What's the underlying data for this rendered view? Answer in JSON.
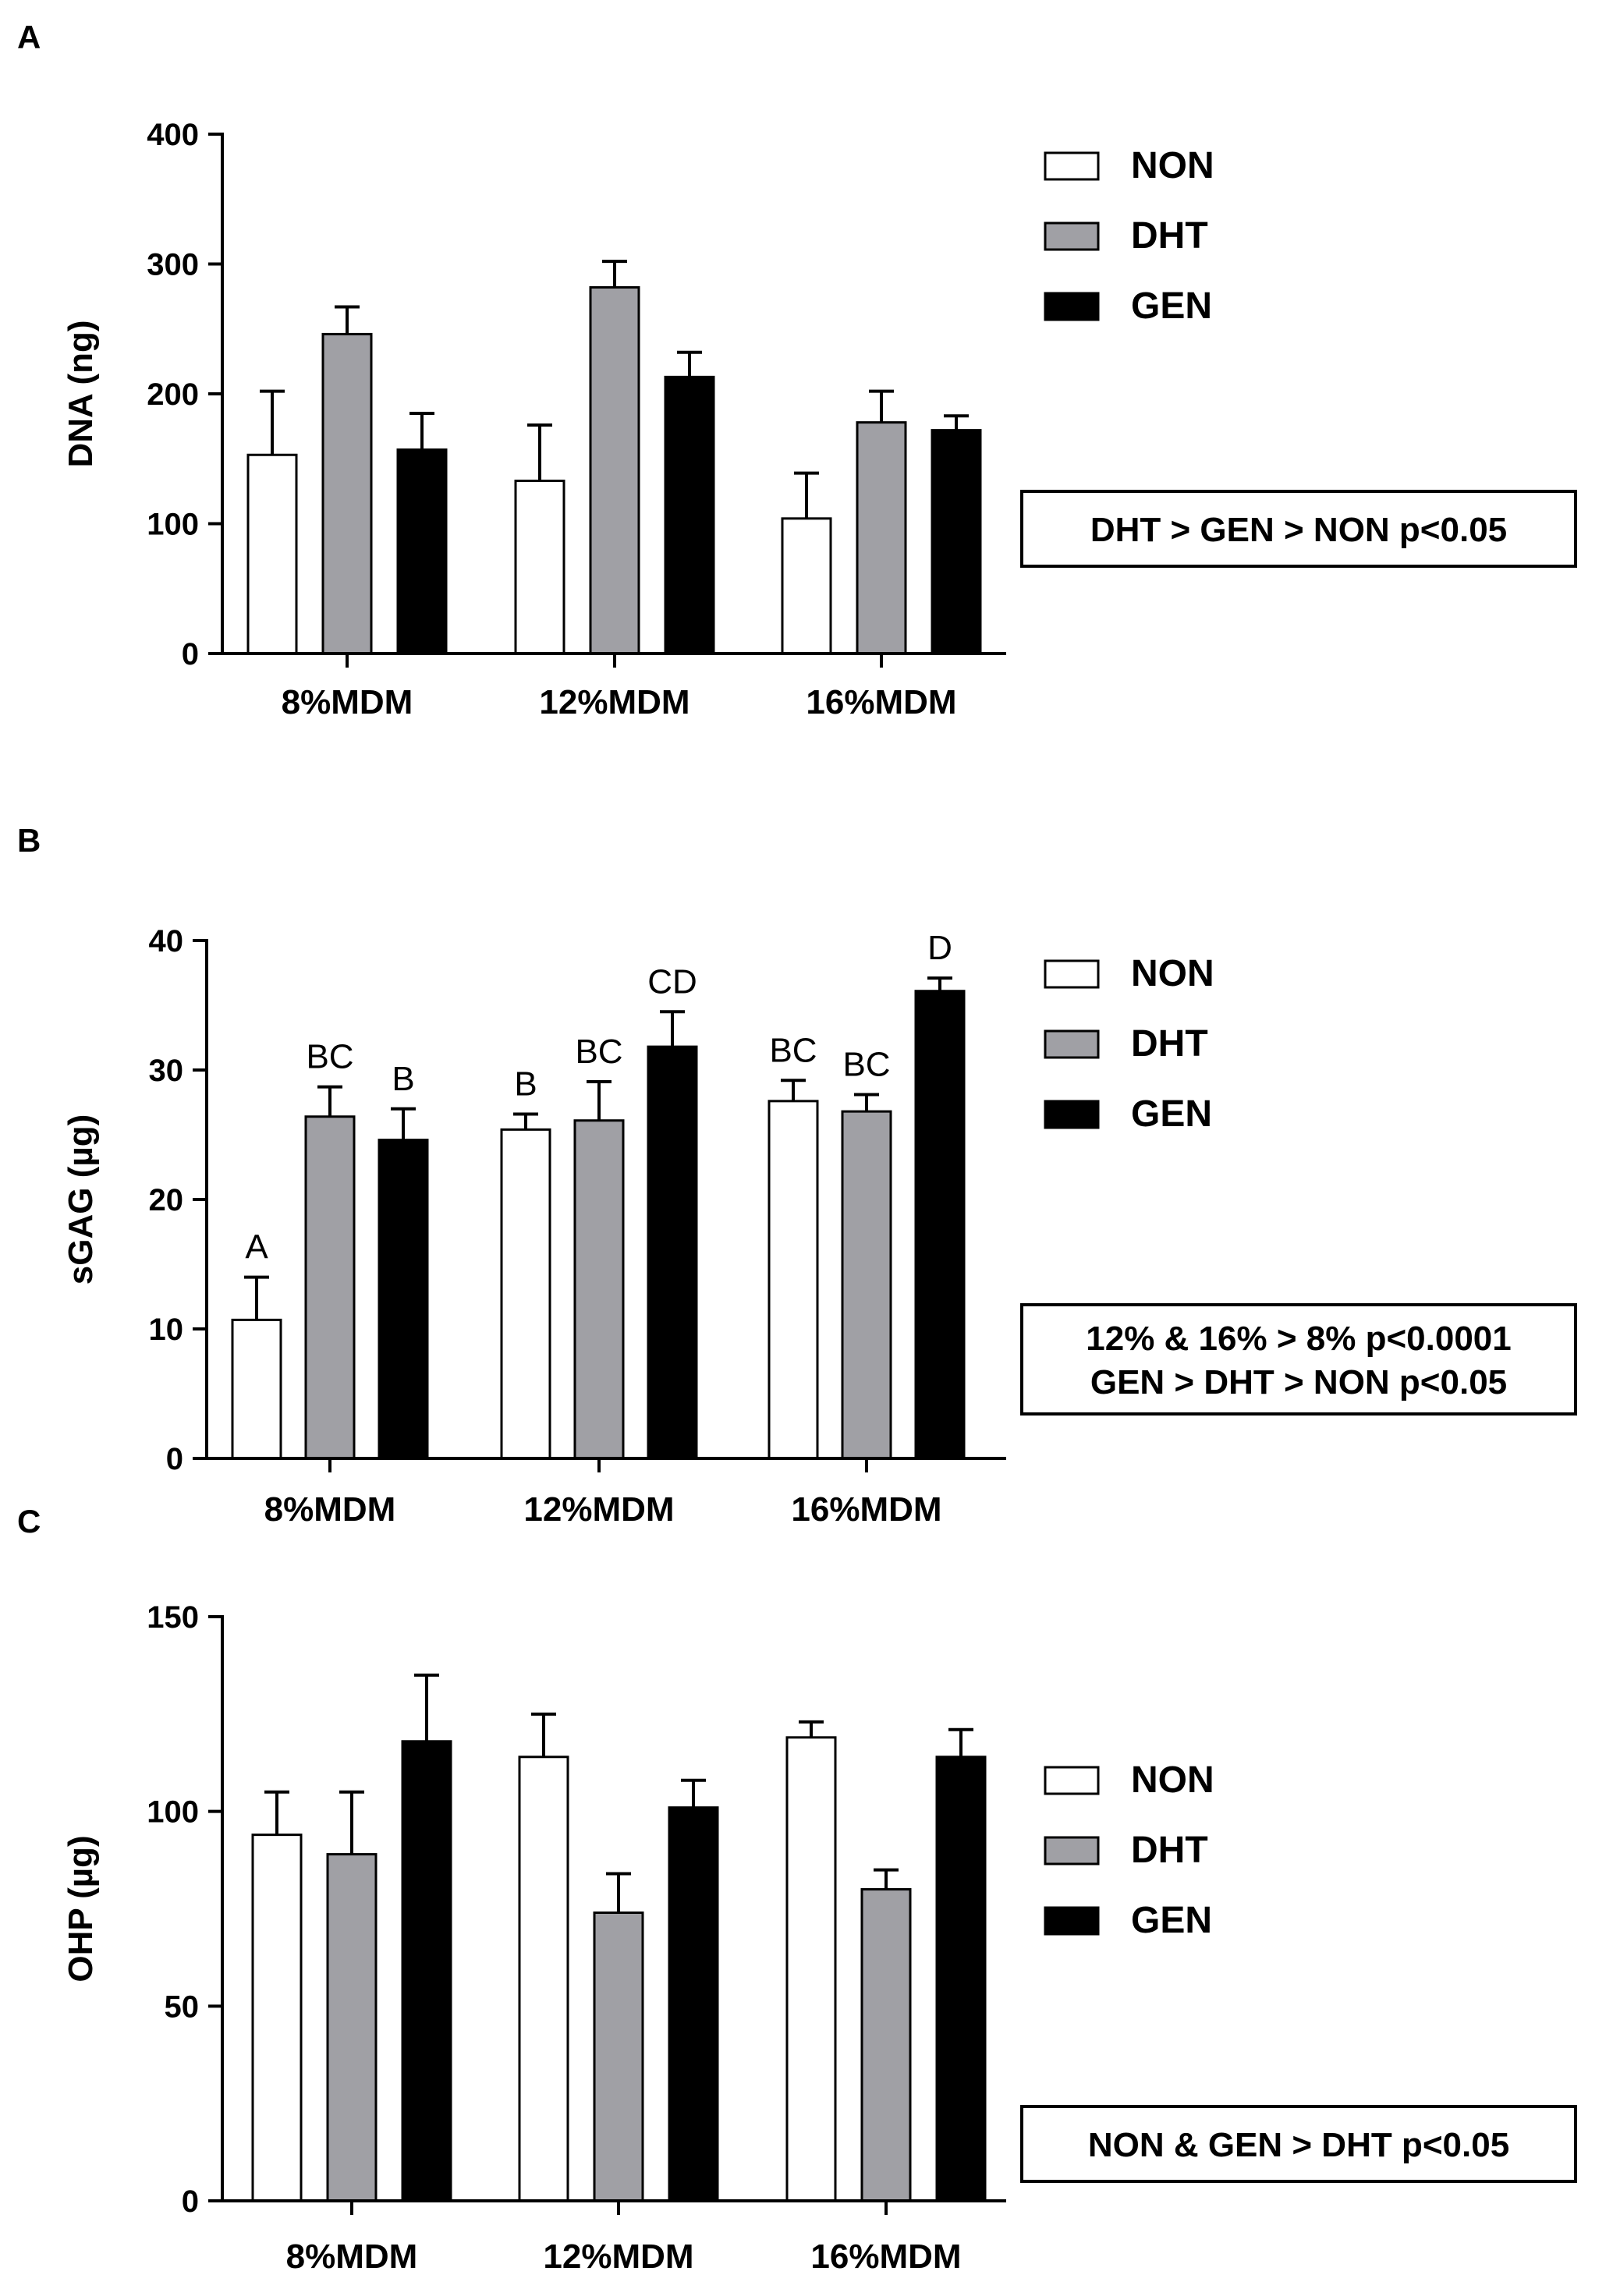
{
  "figure": {
    "groups": [
      "NON",
      "DHT",
      "GEN"
    ],
    "group_colors": {
      "NON": "#ffffff",
      "DHT": "#a0a0a5",
      "GEN": "#000000"
    }
  },
  "chart_data": [
    {
      "panel": "A",
      "type": "bar",
      "ylabel": "DNA (ng)",
      "ylim": [
        0,
        400
      ],
      "yticks": [
        0,
        100,
        200,
        300,
        400
      ],
      "categories": [
        "8%MDM",
        "12%MDM",
        "16%MDM"
      ],
      "series": [
        {
          "name": "NON",
          "values": [
            153,
            133,
            104
          ],
          "errors": [
            49,
            43,
            35
          ]
        },
        {
          "name": "DHT",
          "values": [
            246,
            282,
            178
          ],
          "errors": [
            21,
            20,
            24
          ]
        },
        {
          "name": "GEN",
          "values": [
            157,
            213,
            172
          ],
          "errors": [
            28,
            19,
            11
          ]
        }
      ],
      "significance_labels": [],
      "stats_lines": [
        "DHT > GEN > NON p<0.05"
      ]
    },
    {
      "panel": "B",
      "type": "bar",
      "ylabel": "sGAG (µg)",
      "ylim": [
        0,
        40
      ],
      "yticks": [
        0,
        10,
        20,
        30,
        40
      ],
      "categories": [
        "8%MDM",
        "12%MDM",
        "16%MDM"
      ],
      "series": [
        {
          "name": "NON",
          "values": [
            10.7,
            25.4,
            27.6
          ],
          "errors": [
            3.3,
            1.2,
            1.6
          ]
        },
        {
          "name": "DHT",
          "values": [
            26.4,
            26.1,
            26.8
          ],
          "errors": [
            2.3,
            3.0,
            1.3
          ]
        },
        {
          "name": "GEN",
          "values": [
            24.6,
            31.8,
            36.1
          ],
          "errors": [
            2.4,
            2.7,
            1.0
          ]
        }
      ],
      "significance_labels": [
        [
          "A",
          "B",
          "BC"
        ],
        [
          "BC",
          "BC",
          "BC"
        ],
        [
          "B",
          "CD",
          "D"
        ]
      ],
      "stats_lines": [
        "12% & 16% > 8% p<0.0001",
        "GEN > DHT > NON p<0.05"
      ]
    },
    {
      "panel": "C",
      "type": "bar",
      "ylabel": "OHP (µg)",
      "ylim": [
        0,
        150
      ],
      "yticks": [
        0,
        50,
        100,
        150
      ],
      "categories": [
        "8%MDM",
        "12%MDM",
        "16%MDM"
      ],
      "series": [
        {
          "name": "NON",
          "values": [
            94,
            114,
            119
          ],
          "errors": [
            11,
            11,
            4
          ]
        },
        {
          "name": "DHT",
          "values": [
            89,
            74,
            80
          ],
          "errors": [
            16,
            10,
            5
          ]
        },
        {
          "name": "GEN",
          "values": [
            118,
            101,
            114
          ],
          "errors": [
            17,
            7,
            7
          ]
        }
      ],
      "significance_labels": [],
      "stats_lines": [
        "NON & GEN > DHT p<0.05"
      ]
    }
  ]
}
